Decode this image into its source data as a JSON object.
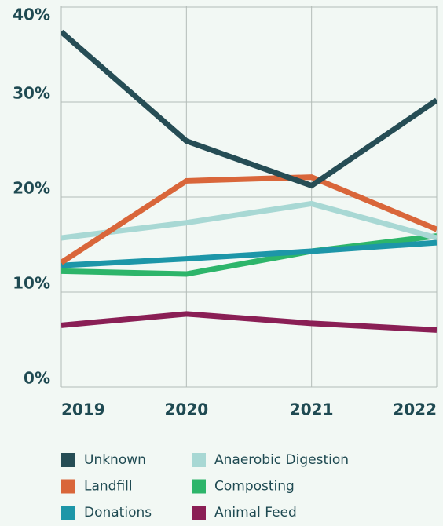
{
  "chart_data": {
    "type": "line",
    "categories": [
      "2019",
      "2020",
      "2021",
      "2022"
    ],
    "series": [
      {
        "name": "Unknown",
        "color": "#264d55",
        "values": [
          37.4,
          25.9,
          21.2,
          30.2
        ]
      },
      {
        "name": "Landfill",
        "color": "#d9663a",
        "values": [
          13.1,
          21.7,
          22.1,
          16.6
        ]
      },
      {
        "name": "Donations",
        "color": "#1d96a8",
        "values": [
          12.8,
          13.5,
          14.3,
          15.2
        ]
      },
      {
        "name": "Anaerobic Digestion",
        "color": "#a8d8d4",
        "values": [
          15.7,
          17.3,
          19.3,
          15.7
        ]
      },
      {
        "name": "Composting",
        "color": "#2db56a",
        "values": [
          12.2,
          11.9,
          14.3,
          15.9
        ]
      },
      {
        "name": "Animal Feed",
        "color": "#8a1f55",
        "values": [
          6.5,
          7.7,
          6.7,
          6.0
        ]
      }
    ],
    "ylim": [
      0,
      40
    ],
    "yticks": [
      {
        "value": 0,
        "label": "0%"
      },
      {
        "value": 10,
        "label": "10%"
      },
      {
        "value": 20,
        "label": "20%"
      },
      {
        "value": 30,
        "label": "30%"
      },
      {
        "value": 40,
        "label": "40%"
      }
    ],
    "grid": true
  }
}
